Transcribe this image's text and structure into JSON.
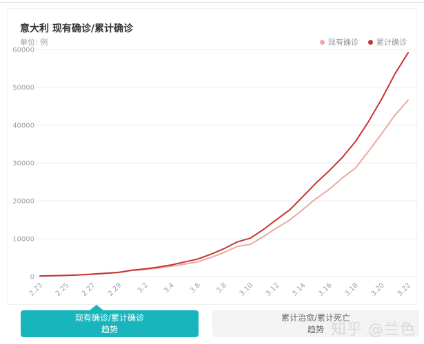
{
  "page": {
    "watermark": "知乎 @兰色"
  },
  "header": {
    "title": "意大利 现有确诊/累计确诊",
    "unit_label": "单位: 例"
  },
  "legend": [
    {
      "label": "现有确诊",
      "color": "#eba7a0"
    },
    {
      "label": "累计确诊",
      "color": "#c23531"
    }
  ],
  "colors": {
    "accent_teal": "#19b5bd",
    "grid_line": "#ececec",
    "tick_text": "#9aa0a6"
  },
  "chart_data": {
    "type": "line",
    "title": "意大利 现有确诊/累计确诊",
    "unit": "例",
    "x": [
      "2.23",
      "2.24",
      "2.25",
      "2.26",
      "2.27",
      "2.28",
      "2.29",
      "3.1",
      "3.2",
      "3.3",
      "3.4",
      "3.5",
      "3.6",
      "3.7",
      "3.8",
      "3.9",
      "3.10",
      "3.11",
      "3.12",
      "3.13",
      "3.14",
      "3.15",
      "3.16",
      "3.17",
      "3.18",
      "3.19",
      "3.20",
      "3.21",
      "3.22"
    ],
    "x_label_every": 2,
    "series": [
      {
        "name": "现有确诊",
        "color": "#eba7a0",
        "values": [
          150,
          220,
          309,
          435,
          588,
          819,
          1049,
          1577,
          1835,
          2263,
          2706,
          3296,
          3916,
          5061,
          6387,
          7985,
          8514,
          10590,
          12839,
          14955,
          17750,
          20603,
          23073,
          26062,
          28710,
          33190,
          37860,
          42681,
          46638
        ]
      },
      {
        "name": "累计确诊",
        "color": "#c23531",
        "values": [
          155,
          229,
          322,
          453,
          655,
          888,
          1128,
          1694,
          2036,
          2502,
          3089,
          3858,
          4636,
          5883,
          7375,
          9172,
          10149,
          12462,
          15113,
          17660,
          21157,
          24747,
          27980,
          31506,
          35713,
          41035,
          47021,
          53578,
          59138
        ]
      }
    ],
    "ylim": [
      0,
      60000
    ],
    "y_ticks": [
      0,
      10000,
      20000,
      30000,
      40000,
      50000,
      60000
    ],
    "grid": true,
    "legend_position": "top-right"
  },
  "tabs": [
    {
      "line1": "现有确诊/累计确诊",
      "line2": "趋势",
      "active": true
    },
    {
      "line1": "累计治愈/累计死亡",
      "line2": "趋势",
      "active": false
    }
  ]
}
